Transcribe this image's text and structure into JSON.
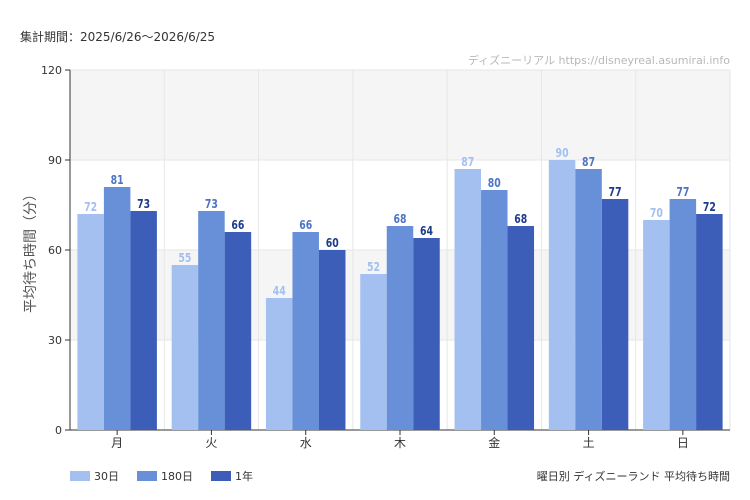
{
  "header": {
    "period": "集計期間：2025/6/26〜2026/6/25",
    "watermark": "ディズニーリアル https://disneyreal.asumirai.info"
  },
  "footer": {
    "caption": "曜日別 ディズニーランド 平均待ち時間"
  },
  "chart_data": {
    "type": "bar",
    "ylabel": "平均待ち時間（分）",
    "ylim": [
      0,
      120
    ],
    "yticks": [
      0,
      30,
      60,
      90,
      120
    ],
    "categories": [
      "月",
      "火",
      "水",
      "木",
      "金",
      "土",
      "日"
    ],
    "series": [
      {
        "name": "30日",
        "color": "#a3c0f0",
        "label_color": "#a3c0f0",
        "values": [
          72,
          55,
          44,
          52,
          87,
          90,
          70
        ]
      },
      {
        "name": "180日",
        "color": "#6890d8",
        "label_color": "#4f74c4",
        "values": [
          81,
          73,
          66,
          68,
          80,
          87,
          77
        ]
      },
      {
        "name": "1年",
        "color": "#3c5db8",
        "label_color": "#1f3a8a",
        "values": [
          73,
          66,
          60,
          64,
          68,
          77,
          72
        ]
      }
    ],
    "legend_position": "bottom-left",
    "grid": true
  }
}
